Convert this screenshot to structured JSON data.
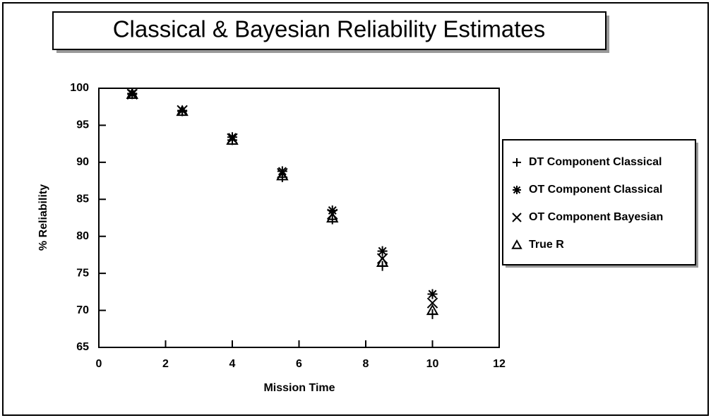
{
  "chart_data": {
    "type": "scatter",
    "title": "Classical & Bayesian Reliability Estimates",
    "x_label": "Mission Time",
    "y_label": "% Reliability",
    "xlim": [
      0,
      12
    ],
    "xticks": [
      0,
      2,
      4,
      6,
      8,
      10,
      12
    ],
    "ylim": [
      65,
      100
    ],
    "yticks": [
      65,
      70,
      75,
      80,
      85,
      90,
      95,
      100
    ],
    "legend_position": "right",
    "series": [
      {
        "name": "DT Component Classical",
        "marker": "plus",
        "color": "#000000",
        "x": [
          1,
          2.5,
          4,
          5.5,
          7,
          8.5,
          10
        ],
        "values": [
          99.2,
          96.9,
          93.0,
          88.0,
          82.3,
          76.0,
          69.5
        ]
      },
      {
        "name": "OT Component Classical",
        "marker": "asterisk",
        "color": "#000000",
        "x": [
          1,
          2.5,
          4,
          5.5,
          7,
          8.5,
          10
        ],
        "values": [
          99.3,
          97.0,
          93.4,
          88.8,
          83.5,
          78.0,
          72.2
        ]
      },
      {
        "name": "OT Component Bayesian",
        "marker": "x",
        "color": "#000000",
        "x": [
          1,
          2.5,
          4,
          5.5,
          7,
          8.5,
          10
        ],
        "values": [
          99.2,
          97.0,
          93.2,
          88.5,
          83.0,
          77.0,
          71.0
        ]
      },
      {
        "name": "True R",
        "marker": "triangle",
        "color": "#000000",
        "x": [
          1,
          2.5,
          4,
          5.5,
          7,
          8.5,
          10
        ],
        "values": [
          99.2,
          96.9,
          93.0,
          88.2,
          82.5,
          76.5,
          70.0
        ]
      }
    ]
  }
}
